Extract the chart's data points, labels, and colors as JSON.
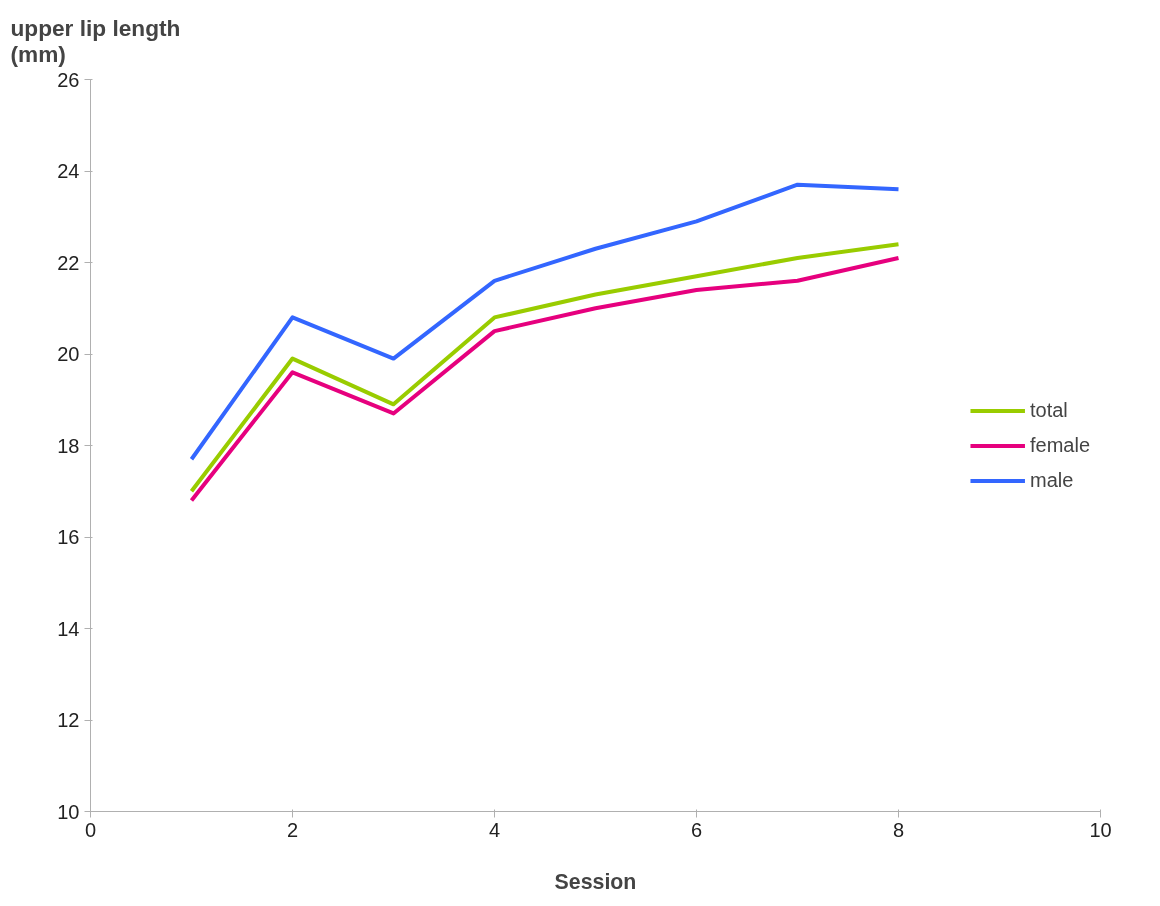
{
  "chart_data": {
    "type": "line",
    "xlabel": "Session",
    "ylabel": "upper lip length (mm)",
    "x": [
      1,
      2,
      3,
      4,
      5,
      6,
      7,
      8
    ],
    "series": [
      {
        "name": "total",
        "color": "#99cc00",
        "values": [
          17.0,
          19.9,
          18.9,
          20.8,
          21.3,
          21.7,
          22.1,
          22.4
        ]
      },
      {
        "name": "female",
        "color": "#e6007e",
        "values": [
          16.8,
          19.6,
          18.7,
          20.5,
          21.0,
          21.4,
          21.6,
          22.1
        ]
      },
      {
        "name": "male",
        "color": "#3366ff",
        "values": [
          17.7,
          20.8,
          19.9,
          21.6,
          22.3,
          22.9,
          23.7,
          23.6
        ]
      }
    ],
    "xlim": [
      0,
      10
    ],
    "xticks": [
      0,
      2,
      4,
      6,
      8,
      10
    ],
    "ylim": [
      10,
      26
    ],
    "yticks": [
      10,
      12,
      14,
      16,
      18,
      20,
      22,
      24,
      26
    ],
    "grid": false,
    "legend": "right",
    "marker": "none",
    "line_style": "solid"
  }
}
